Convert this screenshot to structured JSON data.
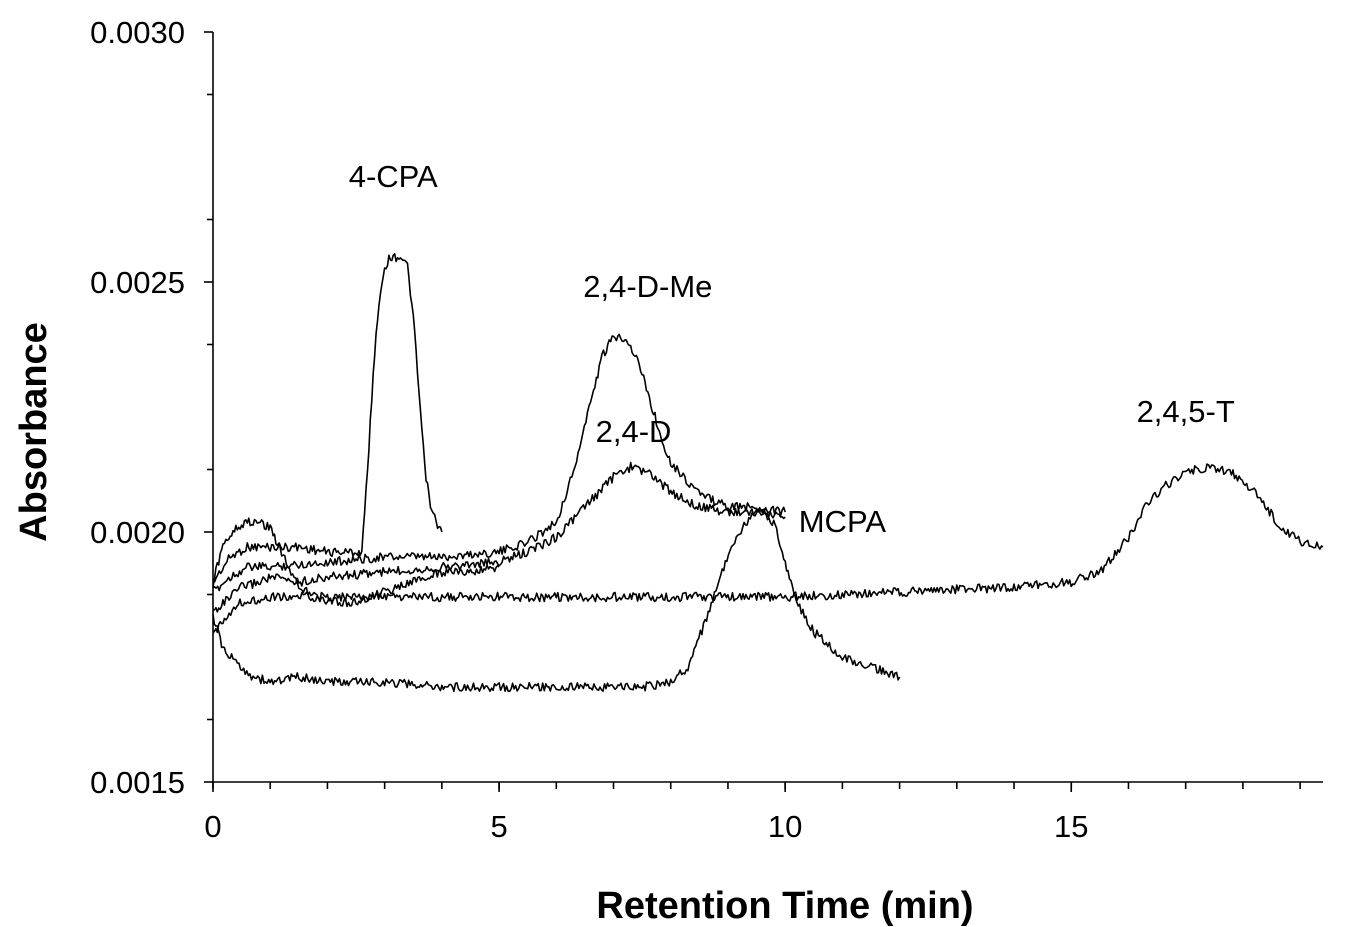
{
  "chart_data": {
    "type": "line",
    "xlabel": "Retention Time (min)",
    "ylabel": "Absorbance",
    "xlim": [
      0,
      19.4
    ],
    "ylim": [
      0.0015,
      0.003
    ],
    "x_ticks": [
      0,
      5,
      10,
      15
    ],
    "x_tick_labels": [
      "0",
      "5",
      "10",
      "15"
    ],
    "y_ticks": [
      0.0015,
      0.002,
      0.0025,
      0.003
    ],
    "y_tick_labels": [
      "0.0015",
      "0.0020",
      "0.0025",
      "0.0030"
    ],
    "grid": false,
    "series": [
      {
        "key": "4-CPA",
        "x": [
          0,
          0.3,
          0.6,
          1.0,
          1.5,
          2.0,
          2.5,
          2.6,
          2.7,
          2.8,
          2.9,
          3.0,
          3.1,
          3.2,
          3.3,
          3.4,
          3.5,
          3.6,
          3.7,
          3.8,
          3.9,
          4.0
        ],
        "y": [
          0.0019,
          0.00195,
          0.00197,
          0.00197,
          0.00197,
          0.00196,
          0.00196,
          0.00196,
          0.00212,
          0.00232,
          0.00246,
          0.00253,
          0.00255,
          0.00255,
          0.00255,
          0.00253,
          0.00243,
          0.00228,
          0.00213,
          0.00205,
          0.00202,
          0.002
        ]
      },
      {
        "key": "2,4-D-Me",
        "x": [
          0,
          0.3,
          0.6,
          1.0,
          2.0,
          3.0,
          4.0,
          5.0,
          5.5,
          6.0,
          6.3,
          6.6,
          6.8,
          7.0,
          7.2,
          7.4,
          7.6,
          7.8,
          8.0,
          8.3,
          8.6,
          9.0,
          9.5,
          10.0
        ],
        "y": [
          0.00188,
          0.00191,
          0.00193,
          0.00193,
          0.00194,
          0.00195,
          0.00195,
          0.00196,
          0.00198,
          0.00202,
          0.00212,
          0.00226,
          0.00235,
          0.00239,
          0.00239,
          0.00235,
          0.00228,
          0.0022,
          0.00214,
          0.0021,
          0.00207,
          0.00205,
          0.00205,
          0.00204
        ]
      },
      {
        "key": "2,4-D",
        "x": [
          0,
          0.2,
          0.5,
          0.8,
          1.0,
          1.5,
          2.0,
          3.0,
          4.0,
          5.0,
          5.5,
          6.0,
          6.5,
          7.0,
          7.3,
          7.6,
          8.0,
          8.5,
          9.0,
          9.5,
          10.0
        ],
        "y": [
          0.00184,
          0.00186,
          0.00189,
          0.0019,
          0.00191,
          0.0019,
          0.00191,
          0.00192,
          0.00193,
          0.00194,
          0.00196,
          0.00199,
          0.00205,
          0.00211,
          0.00213,
          0.00212,
          0.00208,
          0.00205,
          0.00204,
          0.00204,
          0.00203
        ]
      },
      {
        "key": "MCPA",
        "x": [
          0,
          0.2,
          0.4,
          0.7,
          1.0,
          1.5,
          2.0,
          3.0,
          4.0,
          5.0,
          6.0,
          7.0,
          7.5,
          8.0,
          8.3,
          8.6,
          8.9,
          9.2,
          9.5,
          9.8,
          10.0,
          10.2,
          10.5,
          10.8,
          11.0,
          11.5,
          12.0
        ],
        "y": [
          0.00183,
          0.00176,
          0.00174,
          0.00171,
          0.0017,
          0.00171,
          0.0017,
          0.0017,
          0.00169,
          0.00169,
          0.00169,
          0.00169,
          0.00169,
          0.0017,
          0.00173,
          0.00182,
          0.00192,
          0.002,
          0.00204,
          0.00202,
          0.00194,
          0.00186,
          0.0018,
          0.00177,
          0.00175,
          0.00173,
          0.00171
        ]
      },
      {
        "key": "2,4,5-T",
        "x": [
          0,
          0.2,
          0.5,
          1.0,
          2.0,
          4.0,
          6.0,
          8.0,
          10.0,
          12.0,
          14.0,
          15.0,
          15.5,
          16.0,
          16.3,
          16.6,
          17.0,
          17.4,
          17.8,
          18.2,
          18.6,
          19.0,
          19.4
        ],
        "y": [
          0.00179,
          0.00183,
          0.00186,
          0.00187,
          0.00187,
          0.00187,
          0.00187,
          0.00187,
          0.00187,
          0.00188,
          0.00189,
          0.0019,
          0.00192,
          0.00199,
          0.00205,
          0.00209,
          0.00212,
          0.00213,
          0.00212,
          0.00208,
          0.00202,
          0.00198,
          0.00197
        ]
      },
      {
        "key": "early-bump",
        "x": [
          0,
          0.2,
          0.4,
          0.6,
          0.8,
          1.0,
          1.2,
          1.5,
          2.0,
          2.5,
          3.0,
          3.5,
          4.0,
          4.5,
          5.0
        ],
        "y": [
          0.0019,
          0.00198,
          0.00201,
          0.00202,
          0.00202,
          0.00201,
          0.00196,
          0.00189,
          0.00186,
          0.00186,
          0.00188,
          0.0019,
          0.00192,
          0.00192,
          0.00193
        ]
      }
    ],
    "annotations": [
      {
        "text": "4-CPA",
        "x": 3.15,
        "y": 0.00269
      },
      {
        "text": "2,4-D-Me",
        "x": 7.6,
        "y": 0.00247
      },
      {
        "text": "2,4-D",
        "x": 7.35,
        "y": 0.00218
      },
      {
        "text": "MCPA",
        "x": 11.0,
        "y": 0.002
      },
      {
        "text": "2,4,5-T",
        "x": 17.0,
        "y": 0.00222
      }
    ]
  }
}
